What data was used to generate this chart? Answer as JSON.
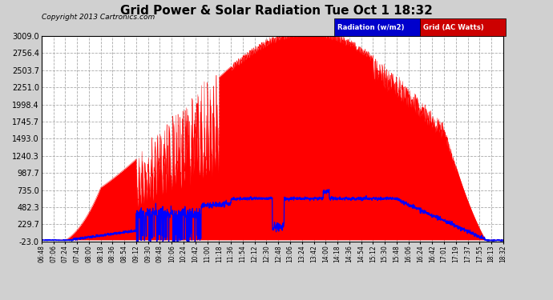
{
  "title": "Grid Power & Solar Radiation Tue Oct 1 18:32",
  "copyright": "Copyright 2013 Cartronics.com",
  "yticks": [
    -23.0,
    229.7,
    482.3,
    735.0,
    987.7,
    1240.3,
    1493.0,
    1745.7,
    1998.4,
    2251.0,
    2503.7,
    2756.4,
    3009.0
  ],
  "ymin": -23.0,
  "ymax": 3009.0,
  "bg_color": "#d0d0d0",
  "plot_bg_color": "#ffffff",
  "radiation_color": "#ff0000",
  "legend_rad_bg": "#0000cc",
  "legend_grid_bg": "#cc0000",
  "xtick_labels": [
    "06:48",
    "07:06",
    "07:24",
    "07:42",
    "08:00",
    "08:18",
    "08:36",
    "08:54",
    "09:12",
    "09:30",
    "09:48",
    "10:06",
    "10:24",
    "10:42",
    "11:00",
    "11:18",
    "11:36",
    "11:54",
    "12:12",
    "12:30",
    "12:48",
    "13:06",
    "13:24",
    "13:42",
    "14:00",
    "14:18",
    "14:36",
    "14:54",
    "15:12",
    "15:30",
    "15:48",
    "16:06",
    "16:24",
    "16:42",
    "17:01",
    "17:19",
    "17:37",
    "17:55",
    "18:13",
    "18:32"
  ]
}
